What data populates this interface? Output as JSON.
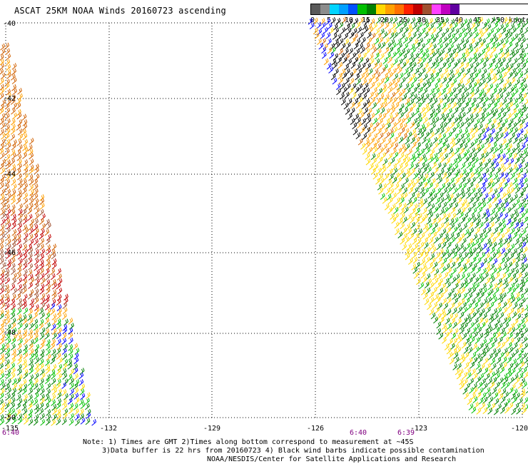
{
  "title": "ASCAT 25KM NOAA Winds 20160723 ascending",
  "legend": {
    "colors": [
      "#5a5a5a",
      "#8c8c8c",
      "#00d4ff",
      "#00a0ff",
      "#0050ff",
      "#00c000",
      "#008000",
      "#ffd800",
      "#ffa000",
      "#ff7000",
      "#ff2000",
      "#c00000",
      "#a05030",
      "#ff40ff",
      "#c000c0",
      "#6000a0"
    ],
    "labels": [
      "0",
      "5",
      "10",
      "15",
      "20",
      "25",
      "30",
      "35",
      "40",
      "45",
      ">50 knots"
    ],
    "unit": "knots"
  },
  "map": {
    "lat_labels": [
      "-40",
      "-42",
      "-44",
      "-46",
      "-48",
      "-50"
    ],
    "lon_labels": [
      "-135",
      "-132",
      "-129",
      "-126",
      "-123",
      "-120"
    ],
    "time_labels": [
      "6:40",
      "6:40",
      "6:39"
    ],
    "lat_range": [
      -50,
      -40
    ],
    "lon_range": [
      -135,
      -120
    ],
    "barb_colors": {
      "black": "#000000",
      "blue": "#0000ff",
      "green": "#008000",
      "light_green": "#00c000",
      "yellow": "#ffd800",
      "orange": "#ffa000",
      "dark_orange": "#d06000",
      "red": "#c00000",
      "brown": "#a05030"
    }
  },
  "notes": {
    "line1": "Note: 1) Times are GMT 2)Times along bottom correspond to measurement at ~45S",
    "line2": "3)Data buffer is 22 hrs from 20160723 4) Black wind barbs indicate possible contamination",
    "line3": "NOAA/NESDIS/Center for Satellite Applications and Research"
  }
}
